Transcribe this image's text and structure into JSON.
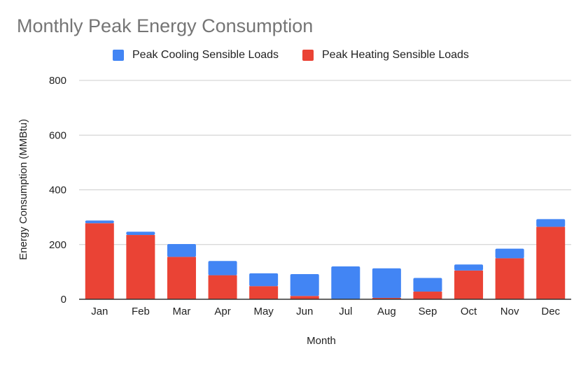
{
  "chart_data": {
    "type": "bar",
    "stacked": true,
    "title": "Monthly Peak Energy Consumption",
    "xlabel": "Month",
    "ylabel": "Energy Consumption (MMBtu)",
    "ylim": [
      0,
      800
    ],
    "yticks": [
      0,
      200,
      400,
      600,
      800
    ],
    "grid": true,
    "legend_position": "top",
    "categories": [
      "Jan",
      "Feb",
      "Mar",
      "Apr",
      "May",
      "Jun",
      "Jul",
      "Aug",
      "Sep",
      "Oct",
      "Nov",
      "Dec"
    ],
    "series": [
      {
        "name": "Peak Heating Sensible Loads",
        "color": "#ea4335",
        "values": [
          278,
          235,
          155,
          88,
          48,
          12,
          0,
          5,
          28,
          105,
          150,
          265
        ]
      },
      {
        "name": "Peak Cooling Sensible Loads",
        "color": "#4285f4",
        "values": [
          10,
          12,
          47,
          52,
          47,
          80,
          120,
          108,
          50,
          22,
          35,
          28
        ]
      }
    ]
  }
}
